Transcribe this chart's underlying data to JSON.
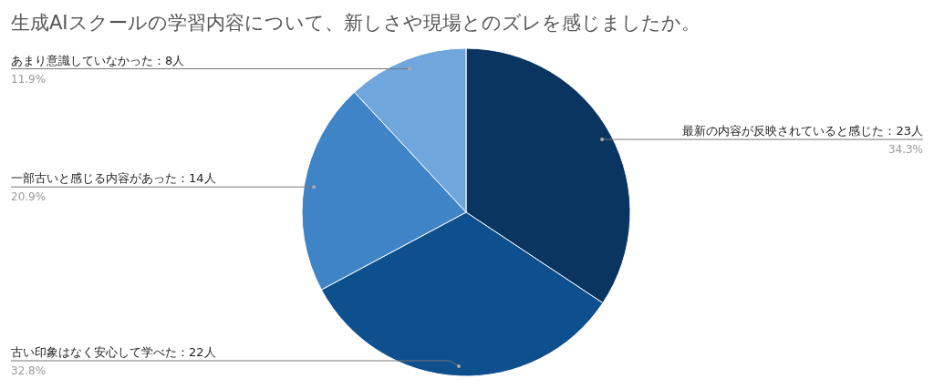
{
  "chart_data": {
    "type": "pie",
    "title": "生成AIスクールの学習内容について、新しさや現場とのズレを感じましたか。",
    "categories": [
      "最新の内容が反映されていると感じた：23人",
      "古い印象はなく安心して学べた：22人",
      "一部古いと感じる内容があった：14人",
      "あまり意識していなかった：8人"
    ],
    "values": [
      34.3,
      32.8,
      20.9,
      11.9
    ],
    "colors": [
      "#0a3561",
      "#0e4f8e",
      "#3f84c7",
      "#6fa6dc"
    ],
    "value_labels": [
      "34.3%",
      "32.8%",
      "20.9%",
      "11.9%"
    ]
  }
}
